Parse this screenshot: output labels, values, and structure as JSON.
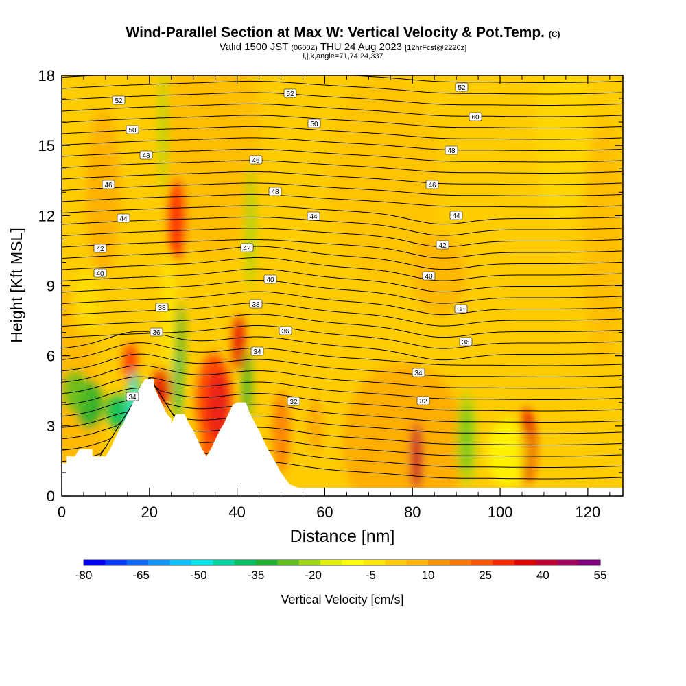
{
  "chart_data": {
    "type": "heatmap",
    "title": "Wind-Parallel Section at Max W: Vertical Velocity & Pot.Temp.",
    "title_suffix": "(C)",
    "subtitle": {
      "part1": "Valid 1500 JST ",
      "part2": "(0600Z)",
      "part3": " THU 24 Aug 2023 ",
      "part4": "[12hrFcst@2226z]"
    },
    "subtitle2": "i,j,k,angle=71,74,24,337",
    "xlabel": "Distance [nm]",
    "ylabel": "Height [Kft MSL]",
    "xlim": [
      0,
      128
    ],
    "ylim": [
      0,
      18
    ],
    "xticks": [
      "0",
      "20",
      "40",
      "60",
      "80",
      "100",
      "120"
    ],
    "yticks": [
      "0",
      "3",
      "6",
      "9",
      "12",
      "15",
      "18"
    ],
    "colorbar": {
      "label": "Vertical Velocity [cm/s]",
      "tick_labels": [
        "-80",
        "-65",
        "-50",
        "-35",
        "-20",
        "-5",
        "10",
        "25",
        "40",
        "55"
      ],
      "colors": [
        "#0000ff",
        "#0a3cff",
        "#0f6aff",
        "#1096ff",
        "#0fc0ff",
        "#00e6e6",
        "#00d4a0",
        "#00c060",
        "#20b030",
        "#60c020",
        "#a0d810",
        "#e0f000",
        "#ffff00",
        "#ffe600",
        "#ffcc00",
        "#ffb400",
        "#ff9600",
        "#ff7a00",
        "#ff5500",
        "#ff2a00",
        "#e00000",
        "#c00030",
        "#a00060",
        "#800080"
      ]
    },
    "contour_labels": [
      "52",
      "52",
      "52",
      "50",
      "50",
      "60",
      "48",
      "48",
      "48",
      "46",
      "46",
      "46",
      "44",
      "44",
      "44",
      "42",
      "42",
      "42",
      "40",
      "40",
      "40",
      "38",
      "38",
      "38",
      "36",
      "36",
      "36",
      "34",
      "34",
      "34",
      "32",
      "32"
    ]
  }
}
